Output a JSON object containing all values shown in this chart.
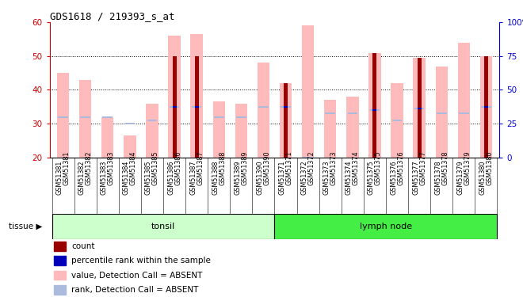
{
  "title": "GDS1618 / 219393_s_at",
  "samples": [
    "GSM51381",
    "GSM51382",
    "GSM51383",
    "GSM51384",
    "GSM51385",
    "GSM51386",
    "GSM51387",
    "GSM51388",
    "GSM51389",
    "GSM51390",
    "GSM51371",
    "GSM51372",
    "GSM51373",
    "GSM51374",
    "GSM51375",
    "GSM51376",
    "GSM51377",
    "GSM51378",
    "GSM51379",
    "GSM51380"
  ],
  "pink_bar_top": [
    45,
    43,
    32,
    26.5,
    36,
    56,
    56.5,
    36.5,
    36,
    48,
    42,
    59,
    37,
    38,
    51,
    42,
    49.5,
    47,
    54,
    50
  ],
  "red_bar_top": [
    20,
    20,
    20,
    20,
    20,
    50,
    50,
    20,
    20,
    20,
    42,
    20,
    20,
    20,
    51,
    20,
    49.5,
    20,
    20,
    50
  ],
  "blue_dark_y": [
    32,
    32,
    32,
    30,
    31,
    35,
    35,
    32,
    32,
    35,
    35,
    20,
    33,
    33,
    34,
    31,
    34.5,
    33,
    33,
    35
  ],
  "blue_light_y": [
    32,
    32,
    32,
    30,
    31,
    35,
    35,
    32,
    32,
    35,
    35,
    20,
    33,
    33,
    34,
    31,
    34.5,
    33,
    33,
    35
  ],
  "ylim_left": [
    20,
    60
  ],
  "ylim_right": [
    0,
    100
  ],
  "yticks_left": [
    20,
    30,
    40,
    50,
    60
  ],
  "yticks_right": [
    0,
    25,
    50,
    75,
    100
  ],
  "pink_color": "#ffbbbb",
  "red_color": "#990000",
  "blue_dark_color": "#0000bb",
  "blue_light_color": "#aabbdd",
  "left_axis_color": "#cc0000",
  "right_axis_color": "#0000cc",
  "tonsil_color": "#ccffcc",
  "lymph_color": "#44ee44",
  "xtick_bg": "#cccccc",
  "legend_items": [
    {
      "label": "count",
      "color": "#990000"
    },
    {
      "label": "percentile rank within the sample",
      "color": "#0000bb"
    },
    {
      "label": "value, Detection Call = ABSENT",
      "color": "#ffbbbb"
    },
    {
      "label": "rank, Detection Call = ABSENT",
      "color": "#aabbdd"
    }
  ]
}
